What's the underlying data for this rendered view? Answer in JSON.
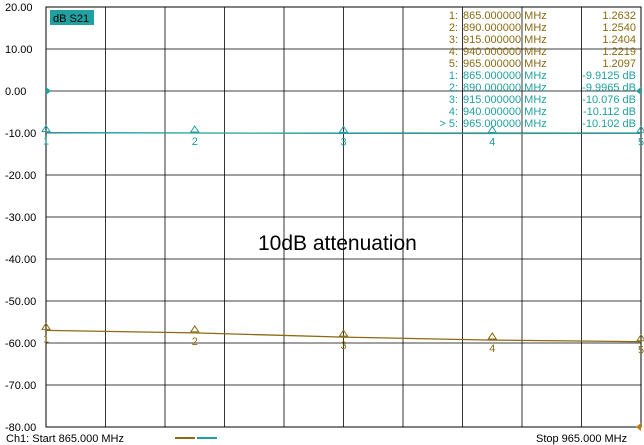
{
  "chart_data": {
    "type": "line",
    "title": "",
    "trace_label": "dB S21",
    "y_tick_labels": [
      "20.00",
      "10.00",
      "0.00",
      "-10.00",
      "-20.00",
      "-30.00",
      "-40.00",
      "-50.00",
      "-60.00",
      "-70.00",
      "-80.00"
    ],
    "ylim": [
      -80,
      20
    ],
    "xlim": [
      865,
      965
    ],
    "x_unit": "MHz",
    "grid": true,
    "start_label": "Ch1: Start  865.000 MHz",
    "stop_label": "Stop  965.000 MHz",
    "annotation": "10dB attenuation",
    "series": [
      {
        "color": "#20a0a0",
        "x": [
          865,
          890,
          915,
          940,
          965
        ],
        "y": [
          -9.9125,
          -9.9965,
          -10.076,
          -10.112,
          -10.102
        ]
      },
      {
        "color": "#8a6a12",
        "x": [
          865,
          890,
          915,
          940,
          965
        ],
        "y": [
          -57.0,
          -57.6,
          -58.6,
          -59.3,
          -59.7
        ]
      }
    ],
    "marker_tables": [
      {
        "color": "#8a6a12",
        "rows": [
          {
            "idx": "1:",
            "freq": "865.000000 MHz",
            "val": "1.2632"
          },
          {
            "idx": "2:",
            "freq": "890.000000 MHz",
            "val": "1.2540"
          },
          {
            "idx": "3:",
            "freq": "915.000000 MHz",
            "val": "1.2404"
          },
          {
            "idx": "4:",
            "freq": "940.000000 MHz",
            "val": "1.2219"
          },
          {
            "idx": "5:",
            "freq": "965.000000 MHz",
            "val": "1.2097"
          }
        ]
      },
      {
        "color": "#20a0a0",
        "rows": [
          {
            "idx": "1:",
            "freq": "865.000000 MHz",
            "val": "-9.9125 dB"
          },
          {
            "idx": "2:",
            "freq": "890.000000 MHz",
            "val": "-9.9965 dB"
          },
          {
            "idx": "3:",
            "freq": "915.000000 MHz",
            "val": "-10.076 dB"
          },
          {
            "idx": "4:",
            "freq": "940.000000 MHz",
            "val": "-10.112 dB"
          },
          {
            "idx": "> 5:",
            "freq": "965.000000 MHz",
            "val": "-10.102 dB"
          }
        ]
      }
    ],
    "marker_labels": [
      "1",
      "2",
      "3",
      "4",
      "5"
    ]
  }
}
